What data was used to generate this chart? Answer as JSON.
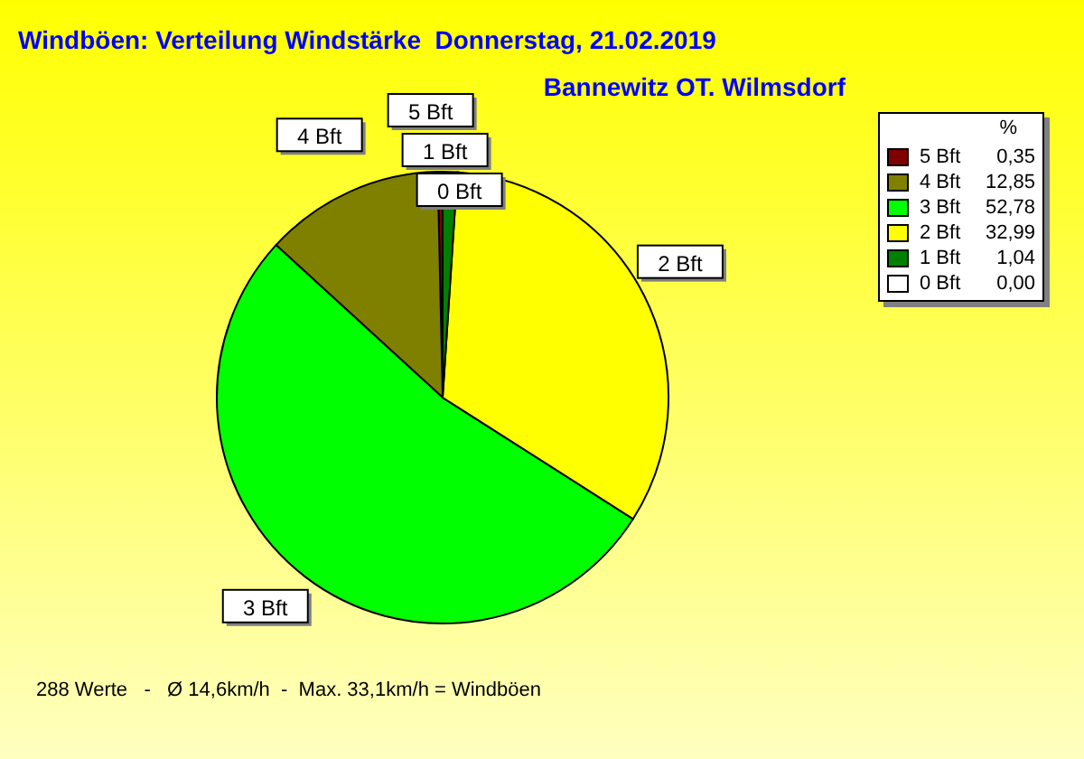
{
  "chart_data": {
    "type": "pie",
    "title": "Windböen: Verteilung Windstärke  Donnerstag, 21.02.2019",
    "subtitle": "Bannewitz OT. Wilmsdorf",
    "legend_title": "%",
    "legend": "top right",
    "categories": [
      "5 Bft",
      "4 Bft",
      "3 Bft",
      "2 Bft",
      "1 Bft",
      "0 Bft"
    ],
    "values": [
      0.35,
      12.85,
      52.78,
      32.99,
      1.04,
      0.0
    ],
    "value_labels": [
      "0,35",
      "12,85",
      "52,78",
      "32,99",
      "1,04",
      "0,00"
    ],
    "colors": [
      "#800000",
      "#808000",
      "#00ff00",
      "#ffff00",
      "#008000",
      "#ffffff"
    ],
    "annotations": [
      "288 Werte   -   Ø 14,6km/h  -  Max. 33,1km/h = Windböen"
    ]
  }
}
